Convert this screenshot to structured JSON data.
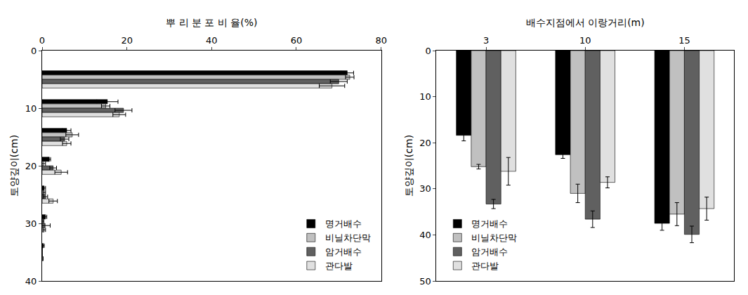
{
  "chart_data": [
    {
      "type": "bar",
      "orientation": "horizontal",
      "x_label": "뿌 리 분 포 비 율(%)",
      "y_label": "토양깊이(cm)",
      "y": [
        5,
        10,
        15,
        20,
        25,
        30,
        35
      ],
      "series": [
        {
          "name": "명거배수",
          "color": "#000000",
          "values": [
            72,
            15.4,
            5.8,
            1.7,
            0.5,
            0.8,
            0.3
          ],
          "errors": [
            1.5,
            2.5,
            1,
            0.3,
            0.3,
            0.3,
            0.2
          ]
        },
        {
          "name": "비닐차단막",
          "color": "#c0c0c0",
          "values": [
            72.6,
            15,
            7.1,
            0.3,
            0.5,
            0.2,
            0
          ],
          "errors": [
            1,
            1,
            1.5,
            0.5,
            0.3,
            0.2,
            0
          ]
        },
        {
          "name": "암거배수",
          "color": "#606060",
          "values": [
            70,
            19.2,
            5.3,
            2.6,
            0.8,
            0.7,
            0
          ],
          "errors": [
            2,
            2,
            1,
            0.8,
            0.5,
            1.2,
            0
          ]
        },
        {
          "name": "관다발",
          "color": "#e0e0e0",
          "values": [
            68.4,
            18.2,
            5.8,
            4.5,
            2.6,
            0.5,
            0.2
          ],
          "errors": [
            3,
            1.5,
            1,
            1.5,
            1,
            0.3,
            0
          ]
        }
      ],
      "xlim": [
        0,
        80
      ],
      "xticks": [
        0,
        20,
        40,
        60,
        80
      ],
      "ylim": [
        40,
        0
      ],
      "yticks": [
        0,
        10,
        20,
        30,
        40
      ],
      "legend": "lower right",
      "grid": false
    },
    {
      "type": "bar",
      "x_label": "배수지점에서 이랑거리(m)",
      "y_label": "토양깊이(cm)",
      "categories": [
        "3",
        "10",
        "15"
      ],
      "series": [
        {
          "name": "명거배수",
          "color": "#000000",
          "values": [
            18.4,
            22.6,
            37.5
          ],
          "errors": [
            1.2,
            0.8,
            1.5
          ]
        },
        {
          "name": "비닐차단막",
          "color": "#c0c0c0",
          "values": [
            25.2,
            31,
            35.5
          ],
          "errors": [
            0.5,
            2,
            2.5
          ]
        },
        {
          "name": "암거배수",
          "color": "#606060",
          "values": [
            33.3,
            36.6,
            39.9
          ],
          "errors": [
            1,
            1.8,
            1.8
          ]
        },
        {
          "name": "관다발",
          "color": "#e0e0e0",
          "values": [
            26.2,
            28.6,
            34.3
          ],
          "errors": [
            3,
            1.2,
            2.5
          ]
        }
      ],
      "ylim": [
        50,
        0
      ],
      "yticks": [
        0,
        10,
        20,
        30,
        40,
        50
      ],
      "legend": "lower left",
      "grid": false
    }
  ]
}
